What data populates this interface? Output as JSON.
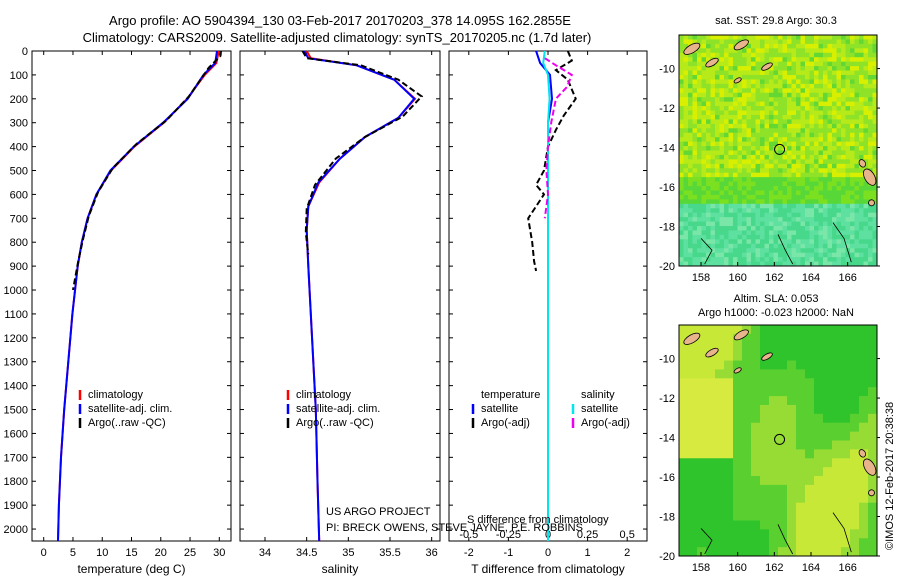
{
  "header": {
    "title_line1": "Argo profile: AO 5904394_130 03-Feb-2017 20170203_378 14.095S 162.2855E",
    "title_line2": "Climatology: CARS2009. Satellite-adjusted climatology: synTS_20170205.nc (1.7d later)"
  },
  "annotations": {
    "project_line1": "US ARGO PROJECT",
    "project_line2": "PI: BRECK OWENS, STEVE JAYNE, P.E. ROBBINS",
    "s_diff_label": "S difference from climatology",
    "stamp": "©IMOS 12-Feb-2017 20:38:38"
  },
  "colors": {
    "climatology": "#ff0000",
    "satellite": "#0000ff",
    "argo": "#000000",
    "salinity_sat": "#00e5ee",
    "salinity_argo": "#ee00ee",
    "ocean_green": "#2fd82f",
    "land": "#e8b48c"
  },
  "maps": {
    "sst_title": "sat. SST: 29.8 Argo: 30.3",
    "sla_title_line1": "Altim. SLA: 0.053",
    "sla_title_line2": "Argo h1000: -0.023 h2000: NaN",
    "lon_ticks": [
      "158",
      "160",
      "162",
      "164",
      "166"
    ],
    "lat_ticks": [
      "-10",
      "-12",
      "-14",
      "-16",
      "-18",
      "-20"
    ],
    "float_position": {
      "lon": 162.2855,
      "lat": -14.095
    }
  },
  "chart_data": [
    {
      "type": "line",
      "id": "temperature",
      "xlabel": "temperature (deg C)",
      "ylabel": "",
      "xlim": [
        -2,
        32
      ],
      "ylim": [
        2050,
        0
      ],
      "xticks": [
        0,
        5,
        10,
        15,
        20,
        25,
        30
      ],
      "yticks": [
        0,
        100,
        200,
        300,
        400,
        500,
        600,
        700,
        800,
        900,
        1000,
        1100,
        1200,
        1300,
        1400,
        1500,
        1600,
        1700,
        1800,
        1900,
        2000
      ],
      "legend": [
        "climatology",
        "satellite-adj. clim.",
        "Argo(..raw -QC)"
      ],
      "series": [
        {
          "name": "climatology",
          "color": "#ff0000",
          "x": [
            29.9,
            29.5,
            27.5,
            24.5,
            20.5,
            15.5,
            11.5,
            9.0,
            7.5,
            6.5,
            5.8,
            4.9,
            4.2,
            3.5,
            2.95,
            2.6,
            2.45
          ],
          "y": [
            0,
            50,
            100,
            200,
            300,
            400,
            500,
            600,
            700,
            800,
            900,
            1100,
            1300,
            1500,
            1700,
            1900,
            2050
          ]
        },
        {
          "name": "satellite-adj. clim.",
          "color": "#0000ff",
          "x": [
            29.6,
            29.3,
            27.3,
            24.6,
            20.4,
            15.4,
            11.4,
            9.0,
            7.5,
            6.5,
            5.8,
            4.9,
            4.2,
            3.5,
            2.95,
            2.6,
            2.45
          ],
          "y": [
            0,
            50,
            100,
            200,
            300,
            400,
            500,
            600,
            700,
            800,
            900,
            1100,
            1300,
            1500,
            1700,
            1900,
            2050
          ]
        },
        {
          "name": "Argo(..raw -QC)",
          "color": "#000000",
          "x": [
            30.3,
            30.2,
            28.2,
            24.8,
            21.0,
            15.8,
            11.8,
            9.3,
            7.7,
            6.7,
            5.9,
            5.0
          ],
          "y": [
            0,
            20,
            70,
            190,
            290,
            390,
            490,
            590,
            690,
            790,
            880,
            1000
          ]
        }
      ]
    },
    {
      "type": "line",
      "id": "salinity",
      "xlabel": "salinity",
      "ylabel": "",
      "xlim": [
        33.7,
        36.1
      ],
      "ylim": [
        2050,
        0
      ],
      "xticks": [
        34,
        34.5,
        35,
        35.5,
        36
      ],
      "legend": [
        "climatology",
        "satellite-adj. clim.",
        "Argo(..raw -QC)"
      ],
      "series": [
        {
          "name": "climatology",
          "color": "#ff0000",
          "x": [
            34.5,
            34.55,
            35.1,
            35.55,
            35.8,
            35.6,
            35.2,
            34.9,
            34.65,
            34.52,
            34.5,
            34.52,
            34.55,
            34.58,
            34.61,
            34.63,
            34.65
          ],
          "y": [
            0,
            30,
            60,
            120,
            200,
            280,
            360,
            450,
            550,
            650,
            750,
            900,
            1100,
            1300,
            1500,
            1800,
            2050
          ]
        },
        {
          "name": "satellite-adj. clim.",
          "color": "#0000ff",
          "x": [
            34.47,
            34.52,
            35.1,
            35.55,
            35.79,
            35.6,
            35.2,
            34.9,
            34.64,
            34.52,
            34.5,
            34.52,
            34.55,
            34.58,
            34.61,
            34.63,
            34.65
          ],
          "y": [
            0,
            30,
            60,
            120,
            200,
            280,
            360,
            450,
            550,
            650,
            750,
            900,
            1100,
            1300,
            1500,
            1800,
            2050
          ]
        },
        {
          "name": "Argo(..raw -QC)",
          "color": "#000000",
          "x": [
            34.45,
            34.5,
            35.15,
            35.6,
            35.88,
            35.65,
            35.2,
            34.85,
            34.6,
            34.5,
            34.49,
            34.52
          ],
          "y": [
            0,
            30,
            60,
            120,
            190,
            275,
            360,
            450,
            560,
            660,
            760,
            850
          ]
        }
      ]
    },
    {
      "type": "line",
      "id": "differences",
      "xlabel": "T difference from climatology",
      "x2label": "S difference from climatology",
      "xlim": [
        -2.5,
        2.5
      ],
      "x2lim": [
        -0.625,
        0.625
      ],
      "ylim": [
        2050,
        0
      ],
      "xticks": [
        -2,
        -1,
        0,
        1,
        2
      ],
      "x2ticks": [
        -0.5,
        -0.25,
        0,
        0.25,
        0.5
      ],
      "legend_headers": [
        "temperature",
        "salinity"
      ],
      "legend": [
        "satellite",
        "Argo(-adj)",
        "satellite",
        "Argo(-adj)"
      ],
      "series": [
        {
          "name": "satellite",
          "quantity": "temperature",
          "color": "#0000ff",
          "x": [
            -0.3,
            -0.2,
            0.05,
            0.1,
            0.0,
            0.0,
            0.0,
            0.0
          ],
          "y": [
            0,
            50,
            100,
            200,
            300,
            500,
            1000,
            2050
          ]
        },
        {
          "name": "Argo(-adj)",
          "quantity": "temperature",
          "color": "#000000",
          "x": [
            0.5,
            0.6,
            0.2,
            0.5,
            0.7,
            0.4,
            0.2,
            0.0,
            -0.1,
            -0.3,
            -0.1,
            -0.5,
            -0.4,
            -0.35,
            -0.3
          ],
          "y": [
            0,
            40,
            80,
            120,
            200,
            270,
            330,
            400,
            500,
            560,
            600,
            700,
            800,
            880,
            920
          ]
        },
        {
          "name": "satellite",
          "quantity": "salinity",
          "color": "#00e5ee",
          "x": [
            -0.02,
            -0.03,
            0.0,
            0.01,
            0.0,
            0.0,
            0.0,
            0.0,
            0.0
          ],
          "y": [
            0,
            50,
            100,
            200,
            300,
            500,
            1000,
            1500,
            2050
          ]
        },
        {
          "name": "Argo(-adj)",
          "quantity": "salinity",
          "color": "#ee00ee",
          "x": [
            -0.02,
            0.05,
            0.15,
            0.12,
            0.05,
            0.02,
            0.0,
            -0.01,
            0.0,
            -0.02
          ],
          "y": [
            30,
            60,
            100,
            150,
            200,
            300,
            400,
            500,
            600,
            700
          ]
        }
      ]
    }
  ]
}
